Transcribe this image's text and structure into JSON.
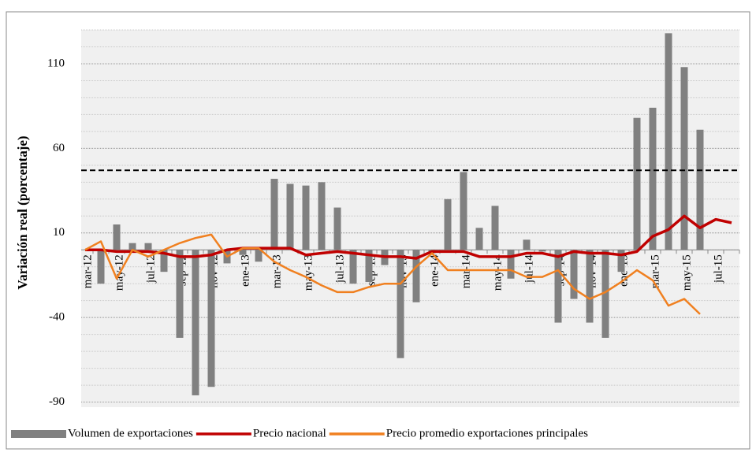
{
  "chart_data": {
    "type": "bar_line",
    "y_label": "Variación real (porcentaje)",
    "categories": [
      "mar-12",
      null,
      "may-12",
      null,
      "jul-12",
      null,
      "sep-12",
      null,
      "nov-12",
      null,
      "ene-13",
      null,
      "mar-13",
      null,
      "may-13",
      null,
      "jul-13",
      null,
      "sep-13",
      null,
      "nov-13",
      null,
      "ene-14",
      null,
      "mar-14",
      null,
      "may-14",
      null,
      "jul-14",
      null,
      "sep-14",
      null,
      "nov-14",
      null,
      "ene-15",
      null,
      "mar-15",
      null,
      "may-15",
      null,
      "jul-15",
      null
    ],
    "series": [
      {
        "name": "Volumen de exportaciones",
        "kind": "bar",
        "color": "#808080",
        "values": [
          null,
          -20,
          15,
          4,
          4,
          -13,
          -52,
          -86,
          -81,
          -8,
          -3,
          -7,
          42,
          39,
          38,
          40,
          25,
          -20,
          -19,
          -9,
          -64,
          -31,
          -2,
          30,
          46,
          13,
          26,
          -17,
          6,
          -1,
          -43,
          -29,
          -43,
          -52,
          -13,
          78,
          84,
          128,
          108,
          71,
          null,
          null
        ]
      },
      {
        "name": "Precio nacional",
        "kind": "line",
        "color": "#c00000",
        "values": [
          0,
          0,
          -1,
          -1,
          -1,
          -2,
          -4,
          -4,
          -3,
          0,
          1,
          1,
          1,
          1,
          -3,
          -2,
          -1,
          -2,
          -3,
          -4,
          -4,
          -5,
          -1,
          -1,
          -1,
          -4,
          -4,
          -4,
          -2,
          -2,
          -4,
          -1,
          -2,
          -2,
          -3,
          -1,
          8,
          12,
          20,
          13,
          18,
          16
        ]
      },
      {
        "name": "Precio promedio exportaciones principales",
        "kind": "line",
        "color": "#f08020",
        "values": [
          0,
          5,
          -17,
          0,
          -4,
          0,
          4,
          7,
          9,
          -4,
          1,
          1,
          -7,
          -12,
          -16,
          -21,
          -25,
          -25,
          -22,
          -20,
          -20,
          -10,
          -2,
          -12,
          -12,
          -12,
          -12,
          -12,
          -16,
          -16,
          -12,
          -23,
          -29,
          -25,
          -19,
          -12,
          -18,
          -33,
          -29,
          -38,
          null,
          null
        ]
      }
    ],
    "reference_line": 47,
    "ylim": [
      -93,
      130
    ],
    "yticks": [
      -90,
      -40,
      10,
      60,
      110
    ],
    "grid": true
  }
}
